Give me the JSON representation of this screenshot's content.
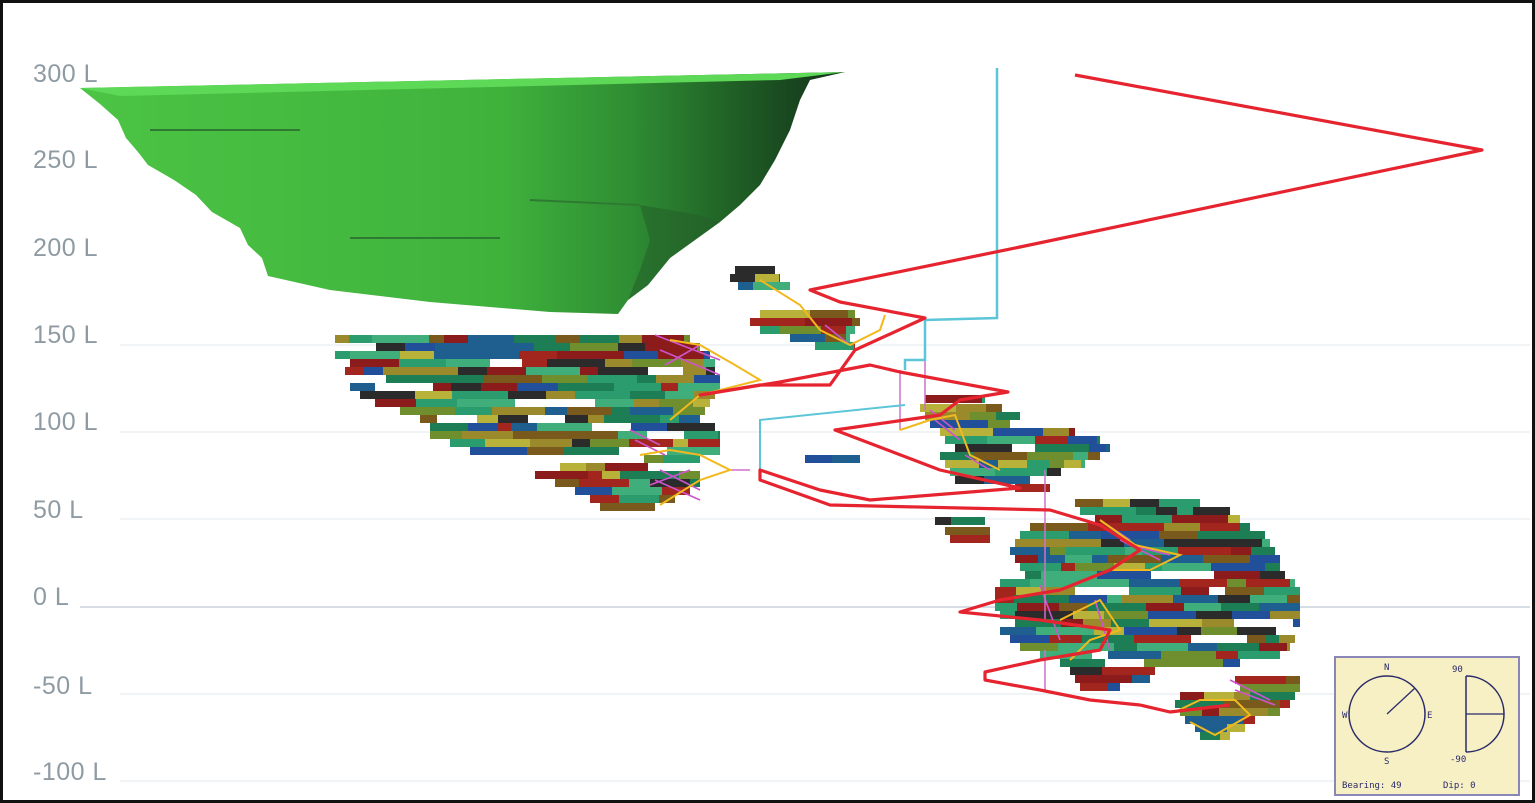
{
  "levels": [
    "300 L",
    "250 L",
    "200 L",
    "150 L",
    "100 L",
    "50 L",
    "0 L",
    "-50 L",
    "-100 L"
  ],
  "colors": {
    "pit_light": "#52c94a",
    "pit_dark": "#1b3a1c",
    "decline": "#e6242f",
    "shaft": "#5cc6d8",
    "drives": "#f2b91e",
    "raises": "#cc55cc",
    "grid": "#cfd8e0",
    "stope_palette": [
      "#8c1b1b",
      "#a3261e",
      "#1d7d54",
      "#2a9c6e",
      "#6f8f2e",
      "#9a8a2c",
      "#1f5f8f",
      "#224f9a",
      "#2b2b2b",
      "#7a5a1c",
      "#b8b23a",
      "#3fae7a"
    ]
  },
  "compass": {
    "north": "N",
    "south": "S",
    "east": "E",
    "west": "W",
    "dip_top": "90",
    "dip_bottom": "-90",
    "bearing": "Bearing: 49",
    "dip": "Dip: 0"
  }
}
